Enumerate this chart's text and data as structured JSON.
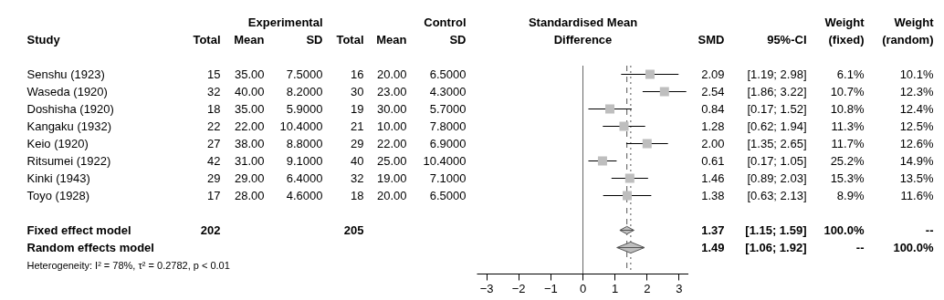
{
  "chart_data": {
    "type": "scatter",
    "orientation": "horizontal",
    "categories": [
      null,
      null,
      null,
      null,
      null,
      null,
      null,
      null,
      null,
      null,
      null,
      null
    ],
    "series": [
      {
        "marker": "square",
        "color": "#bebebe",
        "values": [
          2.09,
          2.54,
          0.84,
          1.28,
          2.0,
          0.61,
          1.46,
          1.38,
          null,
          null,
          null,
          null
        ],
        "errors": [
          [
            1.19,
            2.98
          ],
          [
            1.86,
            3.22
          ],
          [
            0.17,
            1.52
          ],
          [
            0.62,
            1.94
          ],
          [
            1.35,
            2.65
          ],
          [
            0.17,
            1.05
          ],
          [
            0.89,
            2.03
          ],
          [
            0.63,
            2.13
          ],
          null,
          null,
          null,
          null
        ]
      },
      {
        "marker": "diamond",
        "color": "#bebebe",
        "values": [
          null,
          null,
          null,
          null,
          null,
          null,
          null,
          null,
          null,
          1.37,
          1.49,
          null
        ],
        "errors": [
          null,
          null,
          null,
          null,
          null,
          null,
          null,
          null,
          null,
          [
            1.15,
            1.59
          ],
          [
            1.06,
            1.92
          ],
          null
        ]
      }
    ],
    "xlim": [
      -3.3,
      3.3
    ],
    "xticks": [
      -3,
      -2,
      -1,
      0,
      1,
      2,
      3
    ],
    "ref_lines": [
      {
        "axis": "x",
        "value": 0,
        "color": "#666666",
        "line_style": "solid"
      },
      {
        "axis": "x",
        "value": 1.37,
        "color": "#555555",
        "line_style": "dashed"
      },
      {
        "axis": "x",
        "value": 1.49,
        "color": "#555555",
        "line_style": "dotted"
      }
    ],
    "grid": false,
    "annotations": [
      "Experimental",
      "Control",
      "Standardised Mean",
      "Weight",
      "Weight",
      "Study",
      "Total",
      "Mean",
      "SD",
      "Total",
      "Mean",
      "SD",
      "Difference",
      "SMD",
      "95%-CI",
      "(fixed)",
      "(random)",
      "Senshu (1923)",
      "15",
      "35.00",
      "7.5000",
      "16",
      "20.00",
      "6.5000",
      "2.09",
      "[1.19; 2.98]",
      "6.1%",
      "10.1%",
      "Waseda (1920)",
      "32",
      "40.00",
      "8.2000",
      "30",
      "23.00",
      "4.3000",
      "2.54",
      "[1.86; 3.22]",
      "10.7%",
      "12.3%",
      "Doshisha (1920)",
      "18",
      "35.00",
      "5.9000",
      "19",
      "30.00",
      "5.7000",
      "0.84",
      "[0.17; 1.52]",
      "10.8%",
      "12.4%",
      "Kangaku (1932)",
      "22",
      "22.00",
      "10.4000",
      "21",
      "10.00",
      "7.8000",
      "1.28",
      "[0.62; 1.94]",
      "11.3%",
      "12.5%",
      "Keio (1920)",
      "27",
      "38.00",
      "8.8000",
      "29",
      "22.00",
      "6.9000",
      "2.00",
      "[1.35; 2.65]",
      "11.7%",
      "12.6%",
      "Ritsumei (1922)",
      "42",
      "31.00",
      "9.1000",
      "40",
      "25.00",
      "10.4000",
      "0.61",
      "[0.17; 1.05]",
      "25.2%",
      "14.9%",
      "Kinki (1943)",
      "29",
      "29.00",
      "6.4000",
      "32",
      "19.00",
      "7.1000",
      "1.46",
      "[0.89; 2.03]",
      "15.3%",
      "13.5%",
      "Toyo (1928)",
      "17",
      "28.00",
      "4.6000",
      "18",
      "20.00",
      "6.5000",
      "1.38",
      "[0.63; 2.13]",
      "8.9%",
      "11.6%",
      "Fixed effect model",
      "202",
      "205",
      "1.37",
      "[1.15; 1.59]",
      "100.0%",
      "--",
      "Random effects model",
      "1.49",
      "[1.06; 1.92]",
      "--",
      "100.0%",
      "Heterogeneity: I² = 78%, τ² = 0.2782, p < 0.01"
    ]
  }
}
